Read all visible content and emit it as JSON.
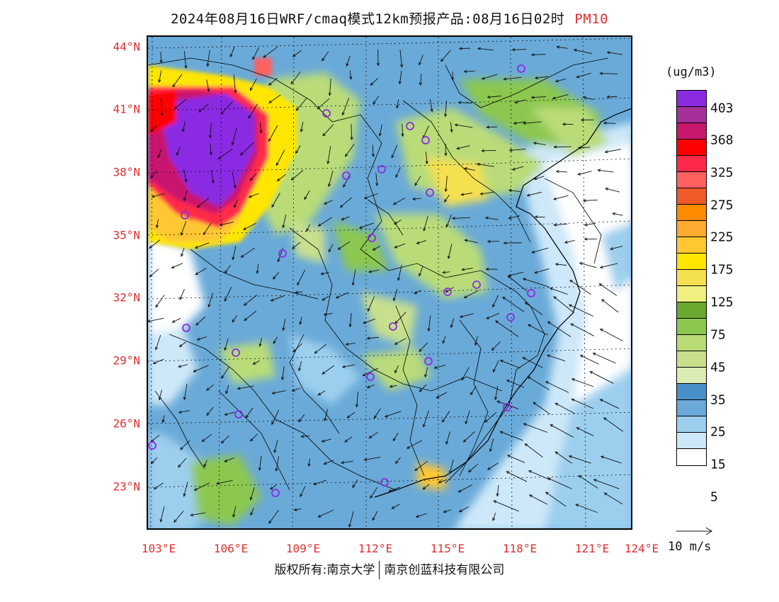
{
  "title": {
    "main": "2024年08月16日WRF/cmaq模式12km预报产品:08月16日02时",
    "species": "PM10"
  },
  "axes": {
    "lat_labels": [
      "44°N",
      "41°N",
      "38°N",
      "35°N",
      "32°N",
      "29°N",
      "26°N",
      "23°N"
    ],
    "lon_labels": [
      "103°E",
      "106°E",
      "109°E",
      "112°E",
      "115°E",
      "118°E",
      "121°E",
      "124°E"
    ]
  },
  "legend": {
    "unit": "(ug/m3)",
    "colors": [
      "#8a2be2",
      "#a6309a",
      "#c8186e",
      "#ff0000",
      "#ff2a4a",
      "#ff6060",
      "#f05a28",
      "#ff8a00",
      "#ffaa30",
      "#ffc830",
      "#ffe600",
      "#f5e050",
      "#f0f080",
      "#6aa830",
      "#8cc850",
      "#b9dc78",
      "#c8e08c",
      "#d8ecb4",
      "#4a90c8",
      "#6aaad8",
      "#9ccfee",
      "#cde8f8",
      "#ffffff"
    ],
    "labels": [
      "403",
      "368",
      "325",
      "275",
      "225",
      "175",
      "125",
      "75",
      "45",
      "35",
      "25",
      "15",
      "5"
    ]
  },
  "vector_label": "10 m/s",
  "footer": {
    "left": "版权所有:南京大学",
    "right": "南京创蓝科技有限公司"
  },
  "stations_icon": "station-circle-icon",
  "arrow_icon": "wind-arrow-icon"
}
